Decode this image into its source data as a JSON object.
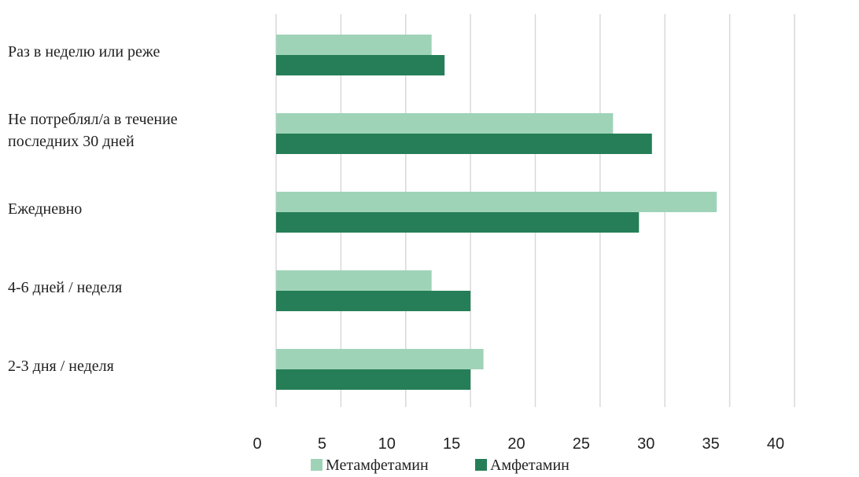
{
  "chart_data": {
    "type": "bar",
    "orientation": "horizontal",
    "categories": [
      "Раз в неделю или реже",
      "Не потреблял/а в течение последних 30 дней",
      "Ежедневно",
      "4-6 дней / неделя",
      "2-3 дня / неделя"
    ],
    "category_lines": [
      [
        "Раз в неделю или реже"
      ],
      [
        "Не потреблял/а в течение",
        "последних 30 дней"
      ],
      [
        "Ежедневно"
      ],
      [
        "4-6 дней / неделя"
      ],
      [
        "2-3 дня / неделя"
      ]
    ],
    "series": [
      {
        "name": "Метамфетамин",
        "color": "#9fd3b8",
        "values": [
          12,
          26,
          34,
          12,
          16
        ]
      },
      {
        "name": "Амфетамин",
        "color": "#257e57",
        "values": [
          13,
          29,
          28,
          15,
          15
        ]
      }
    ],
    "xlim": [
      0,
      40
    ],
    "xticks": [
      "0",
      "5",
      "10",
      "15",
      "20",
      "25",
      "30",
      "35",
      "40"
    ],
    "grid": "vertical",
    "legend": "bottom"
  }
}
